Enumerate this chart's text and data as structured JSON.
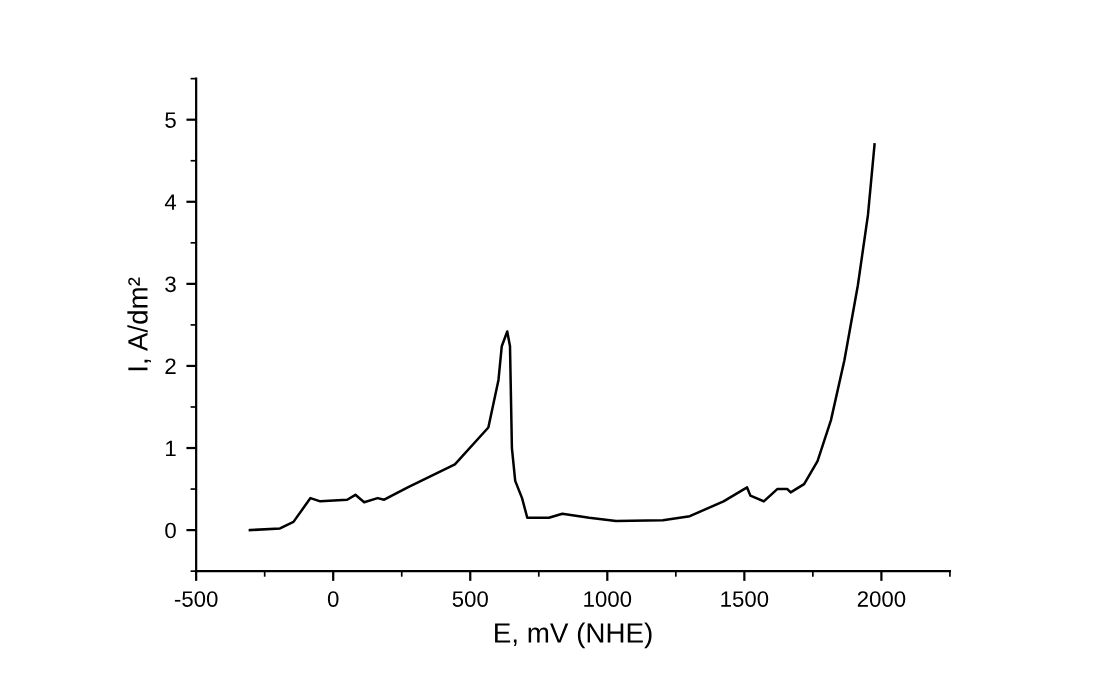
{
  "chart_data": {
    "type": "line",
    "xlabel": "E, mV (NHE)",
    "ylabel": "I, A/dm²",
    "xlim": [
      -500,
      2250
    ],
    "ylim": [
      -0.5,
      5.5
    ],
    "xticks": [
      -500,
      0,
      500,
      1000,
      1500,
      2000
    ],
    "yticks": [
      0,
      1,
      2,
      3,
      4,
      5
    ],
    "grid": false,
    "legend": false,
    "marker": "none",
    "line_style": "solid",
    "series": [
      {
        "color": "#000000",
        "x": [
          -304,
          -194,
          -145,
          -83,
          -47,
          51,
          81,
          113,
          162,
          186,
          272,
          444,
          566,
          603,
          615,
          635,
          645,
          652,
          664,
          689,
          708,
          787,
          836,
          934,
          1032,
          1203,
          1301,
          1424,
          1510,
          1522,
          1571,
          1620,
          1657,
          1669,
          1718,
          1767,
          1816,
          1865,
          1914,
          1951,
          1975
        ],
        "values": [
          0,
          0.02,
          0.1,
          0.39,
          0.35,
          0.37,
          0.43,
          0.34,
          0.39,
          0.37,
          0.52,
          0.8,
          1.25,
          1.83,
          2.24,
          2.42,
          2.24,
          1.0,
          0.6,
          0.39,
          0.15,
          0.15,
          0.2,
          0.15,
          0.11,
          0.12,
          0.17,
          0.35,
          0.52,
          0.42,
          0.35,
          0.5,
          0.5,
          0.46,
          0.56,
          0.84,
          1.34,
          2.07,
          2.98,
          3.84,
          4.7
        ]
      }
    ]
  }
}
